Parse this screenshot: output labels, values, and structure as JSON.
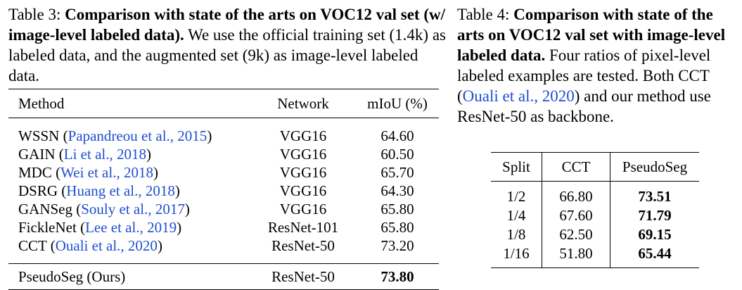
{
  "table3": {
    "caption_label": "Table 3:",
    "caption_title": "Comparison with state of the arts on VOC12 val set (w/ image-level labeled data).",
    "caption_body": "We use the official training set (1.4k) as labeled data, and the augmented set (9k) as image-level labeled data.",
    "headers": {
      "method": "Method",
      "network": "Network",
      "miou": "mIoU (%)"
    },
    "rows": [
      {
        "method": "WSSN",
        "cite": "Papandreou et al., 2015",
        "network": "VGG16",
        "miou": "64.60"
      },
      {
        "method": "GAIN",
        "cite": "Li et al., 2018",
        "network": "VGG16",
        "miou": "60.50"
      },
      {
        "method": "MDC",
        "cite": "Wei et al., 2018",
        "network": "VGG16",
        "miou": "65.70"
      },
      {
        "method": "DSRG",
        "cite": "Huang et al., 2018",
        "network": "VGG16",
        "miou": "64.30"
      },
      {
        "method": "GANSeg",
        "cite": "Souly et al., 2017",
        "network": "VGG16",
        "miou": "65.80"
      },
      {
        "method": "FickleNet",
        "cite": "Lee et al., 2019",
        "network": "ResNet-101",
        "miou": "65.80"
      },
      {
        "method": "CCT",
        "cite": "Ouali et al., 2020",
        "network": "ResNet-50",
        "miou": "73.20"
      }
    ],
    "ours": {
      "method": "PseudoSeg (Ours)",
      "network": "ResNet-50",
      "miou": "73.80"
    }
  },
  "table4": {
    "caption_label": "Table 4:",
    "caption_title": "Comparison with state of the arts on VOC12 val set with image-level labeled data.",
    "caption_body_1": "Four ratios of pixel-level labeled examples are tested. Both CCT (",
    "caption_cite": "Ouali et al., 2020",
    "caption_body_2": ") and our method use ResNet-50 as backbone.",
    "headers": {
      "split": "Split",
      "cct": "CCT",
      "pseudoseg": "PseudoSeg"
    },
    "rows": [
      {
        "split": "1/2",
        "cct": "66.80",
        "pseudoseg": "73.51"
      },
      {
        "split": "1/4",
        "cct": "67.60",
        "pseudoseg": "71.79"
      },
      {
        "split": "1/8",
        "cct": "62.50",
        "pseudoseg": "69.15"
      },
      {
        "split": "1/16",
        "cct": "51.80",
        "pseudoseg": "65.44"
      }
    ]
  }
}
